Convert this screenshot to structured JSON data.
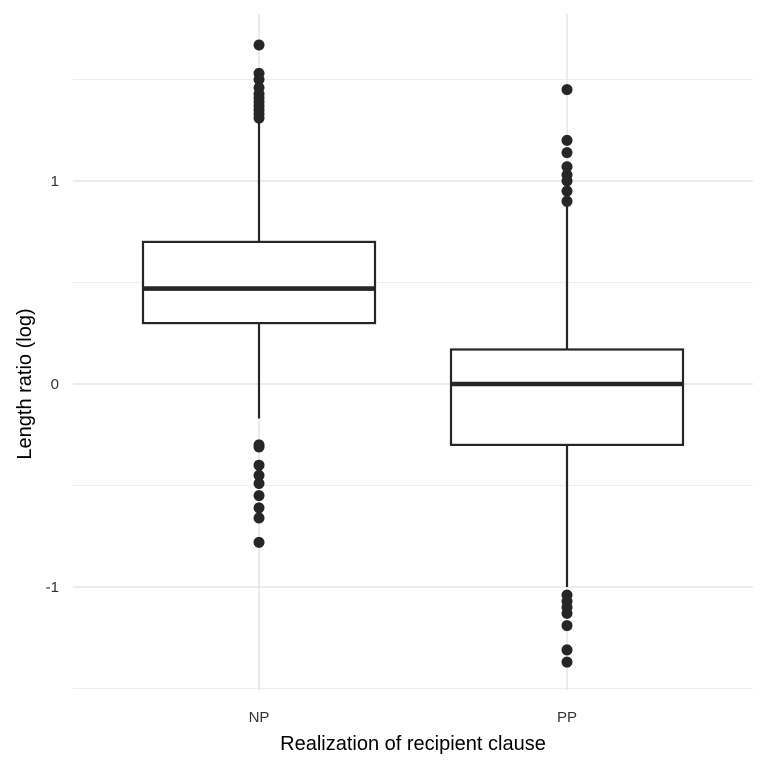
{
  "chart_data": {
    "type": "boxplot",
    "title": "",
    "xlabel": "Realization of recipient clause",
    "ylabel": "Length ratio (log)",
    "ylim": [
      -1.5,
      1.65
    ],
    "yticks": [
      -1,
      0,
      1
    ],
    "ytick_labels": [
      "-1",
      "0",
      "1"
    ],
    "grid": true,
    "categories": [
      "NP",
      "PP"
    ],
    "boxes": [
      {
        "category": "NP",
        "whisker_low": -0.17,
        "q1": 0.3,
        "median": 0.47,
        "q3": 0.7,
        "whisker_high": 1.3,
        "outliers": [
          1.67,
          1.53,
          1.5,
          1.46,
          1.43,
          1.41,
          1.39,
          1.37,
          1.35,
          1.33,
          1.31,
          -0.3,
          -0.31,
          -0.4,
          -0.45,
          -0.49,
          -0.55,
          -0.61,
          -0.66,
          -0.78
        ]
      },
      {
        "category": "PP",
        "whisker_low": -1.0,
        "q1": -0.3,
        "median": 0.0,
        "q3": 0.17,
        "whisker_high": 0.88,
        "outliers": [
          1.45,
          1.2,
          1.14,
          1.07,
          1.03,
          1.0,
          0.95,
          0.9,
          -1.04,
          -1.07,
          -1.1,
          -1.13,
          -1.19,
          -1.31,
          -1.37
        ]
      }
    ]
  }
}
